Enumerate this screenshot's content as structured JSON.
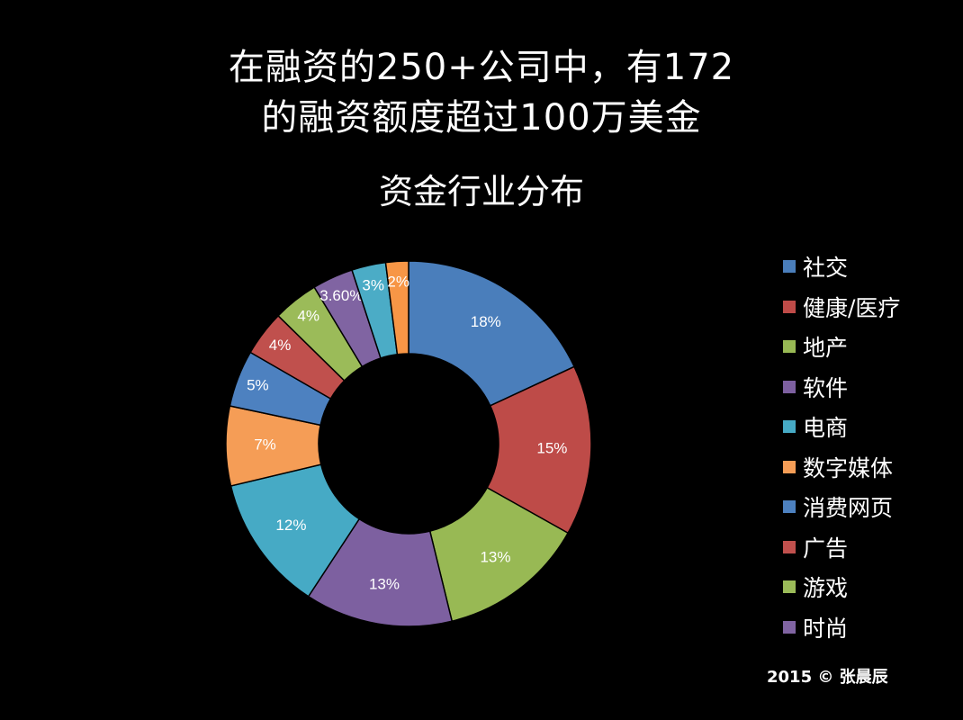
{
  "headline": {
    "line1": "在融资的250+公司中，有172",
    "line2": "的融资额度超过100万美金"
  },
  "copyright": "2015 ©  张晨辰",
  "chart_data": {
    "type": "pie",
    "variant": "doughnut",
    "title": "资金行业分布",
    "legend_position": "right",
    "categories": [
      "社交",
      "健康/医疗",
      "地产",
      "软件",
      "电商",
      "数字媒体",
      "消费网页",
      "广告",
      "游戏",
      "时尚",
      "",
      ""
    ],
    "values": [
      18,
      15,
      13,
      13,
      12,
      7,
      5,
      4,
      4,
      3.6,
      3,
      2
    ],
    "labels": [
      "18%",
      "15%",
      "13%",
      "13%",
      "12%",
      "7%",
      "5%",
      "4%",
      "4%",
      "3.60%",
      "3%",
      "2%"
    ],
    "colors": [
      "#4a7ebb",
      "#be4b48",
      "#98b954",
      "#7d60a0",
      "#46aac5",
      "#f59d56",
      "#4d81c0",
      "#c0504d",
      "#9bbb59",
      "#8064a2",
      "#4bacc6",
      "#f79646"
    ],
    "legend_entries": [
      "社交",
      "健康/医疗",
      "地产",
      "软件",
      "电商",
      "数字媒体",
      "消费网页",
      "广告",
      "游戏",
      "时尚"
    ]
  }
}
